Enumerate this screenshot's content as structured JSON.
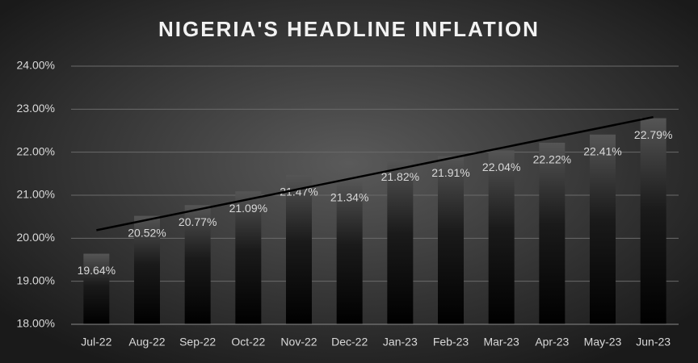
{
  "chart_data": {
    "type": "bar",
    "title": "NIGERIA'S HEADLINE INFLATION",
    "categories": [
      "Jul-22",
      "Aug-22",
      "Sep-22",
      "Oct-22",
      "Nov-22",
      "Dec-22",
      "Jan-23",
      "Feb-23",
      "Mar-23",
      "Apr-23",
      "May-23",
      "Jun-23"
    ],
    "values": [
      19.64,
      20.52,
      20.77,
      21.09,
      21.47,
      21.34,
      21.82,
      21.91,
      22.04,
      22.22,
      22.41,
      22.79
    ],
    "value_labels": [
      "19.64%",
      "20.52%",
      "20.77%",
      "21.09%",
      "21.47%",
      "21.34%",
      "21.82%",
      "21.91%",
      "22.04%",
      "22.22%",
      "22.41%",
      "22.79%"
    ],
    "color": "#4a4a4a",
    "ylim": [
      18,
      24
    ],
    "yticks": [
      {
        "value": 18,
        "label": "18.00%"
      },
      {
        "value": 19,
        "label": "19.00%"
      },
      {
        "value": 20,
        "label": "20.00%"
      },
      {
        "value": 21,
        "label": "21.00%"
      },
      {
        "value": 22,
        "label": "22.00%"
      },
      {
        "value": 23,
        "label": "23.00%"
      },
      {
        "value": 24,
        "label": "24.00%"
      }
    ],
    "grid": true,
    "trendline": true
  }
}
